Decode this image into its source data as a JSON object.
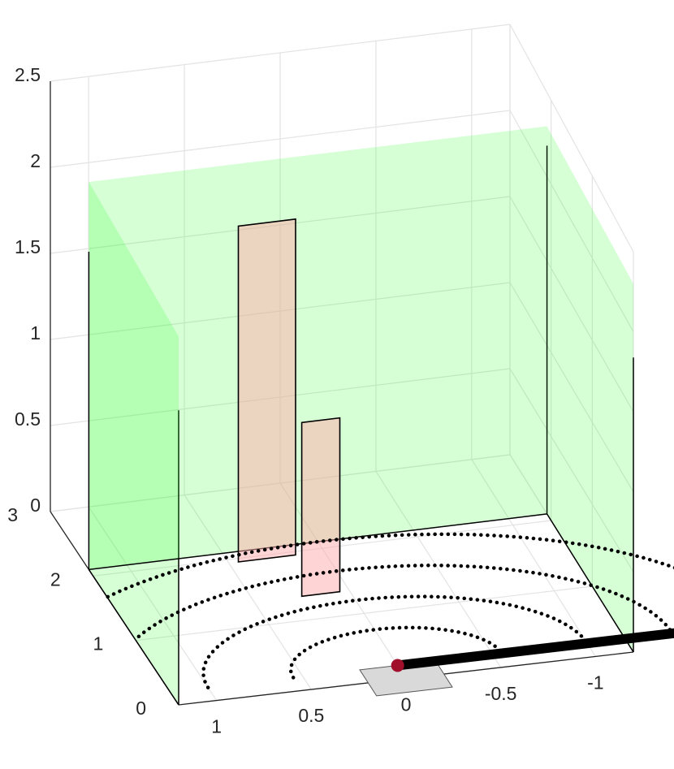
{
  "chart_data": {
    "type": "3d-scene",
    "axes": {
      "x": {
        "ticks": [
          "1",
          "0.5",
          "0",
          "-0.5",
          "-1"
        ],
        "range": [
          -1.2,
          1.2
        ]
      },
      "y": {
        "ticks": [
          "0",
          "1",
          "2",
          "3"
        ],
        "range": [
          0,
          3
        ]
      },
      "z": {
        "ticks": [
          "0",
          "0.5",
          "1",
          "1.5",
          "2",
          "2.5"
        ],
        "range": [
          0,
          2.5
        ]
      }
    },
    "grid": true,
    "walls": [
      {
        "name": "left-wall",
        "x": 1.2,
        "y_range": [
          0,
          2.1
        ],
        "z_range": [
          0,
          2.3
        ],
        "color": "#33ff33"
      },
      {
        "name": "back-wall",
        "y": 2.1,
        "x_range": [
          -1.2,
          1.2
        ],
        "z_range": [
          0,
          2.3
        ],
        "color": "#33ff33"
      },
      {
        "name": "right-wall",
        "x": -1.2,
        "y_range": [
          0,
          2.1
        ],
        "z_range": [
          0,
          2.3
        ],
        "color": "#33ff33"
      }
    ],
    "panels": [
      {
        "name": "tall-panel",
        "x_range": [
          0.15,
          0.45
        ],
        "y": 1.95,
        "z_range": [
          0,
          2.0
        ],
        "color": "#ffaaaa"
      },
      {
        "name": "short-panel",
        "x_range": [
          0.05,
          0.25
        ],
        "y": 1.35,
        "z_range": [
          0,
          1.05
        ],
        "color": "#ffaaaa"
      }
    ],
    "arcs": [
      {
        "radius": 0.55,
        "center": [
          0,
          0.2
        ]
      },
      {
        "radius": 1.0,
        "center": [
          0,
          0.2
        ]
      },
      {
        "radius": 1.45,
        "center": [
          0,
          0.2
        ]
      },
      {
        "radius": 1.9,
        "center": [
          0,
          0.2
        ]
      }
    ],
    "floor_patch": {
      "x_range": [
        -0.2,
        0.2
      ],
      "y_range": [
        -0.2,
        0.2
      ],
      "color": "#d9d9d9"
    },
    "arm": {
      "start": [
        0,
        0.2,
        0
      ],
      "end": [
        -1.85,
        0.2,
        0
      ],
      "color": "#000000"
    },
    "marker": {
      "position": [
        0,
        0.2,
        0
      ],
      "color": "#a0102a"
    }
  }
}
